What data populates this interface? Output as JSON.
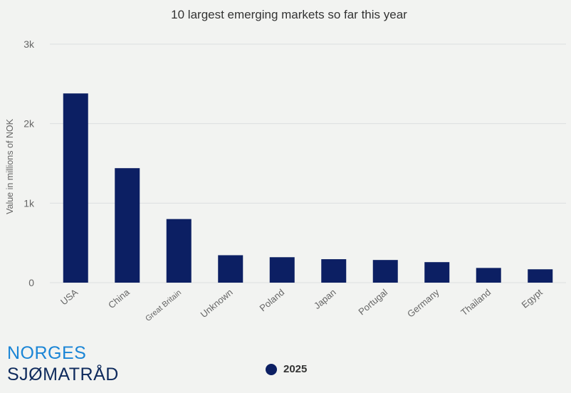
{
  "chart_data": {
    "type": "bar",
    "title": "10 largest emerging markets so far this year",
    "ylabel": "Value in millions of NOK",
    "xlabel": "",
    "ylim": [
      0,
      3000
    ],
    "yticks": [
      {
        "value": 0,
        "label": "0"
      },
      {
        "value": 1000,
        "label": "1k"
      },
      {
        "value": 2000,
        "label": "2k"
      },
      {
        "value": 3000,
        "label": "3k"
      }
    ],
    "categories": [
      "USA",
      "China",
      "Great Britain",
      "Unknown",
      "Poland",
      "Japan",
      "Portugal",
      "Germany",
      "Thailand",
      "Egypt"
    ],
    "series": [
      {
        "name": "2025",
        "color": "#0c1f63",
        "values": [
          2380,
          1440,
          800,
          345,
          320,
          295,
          285,
          258,
          185,
          168
        ]
      }
    ],
    "grid": true,
    "legend": "bottom-center"
  },
  "logo": {
    "line1": "NORGES",
    "line2": "SJØMATRÅD"
  }
}
